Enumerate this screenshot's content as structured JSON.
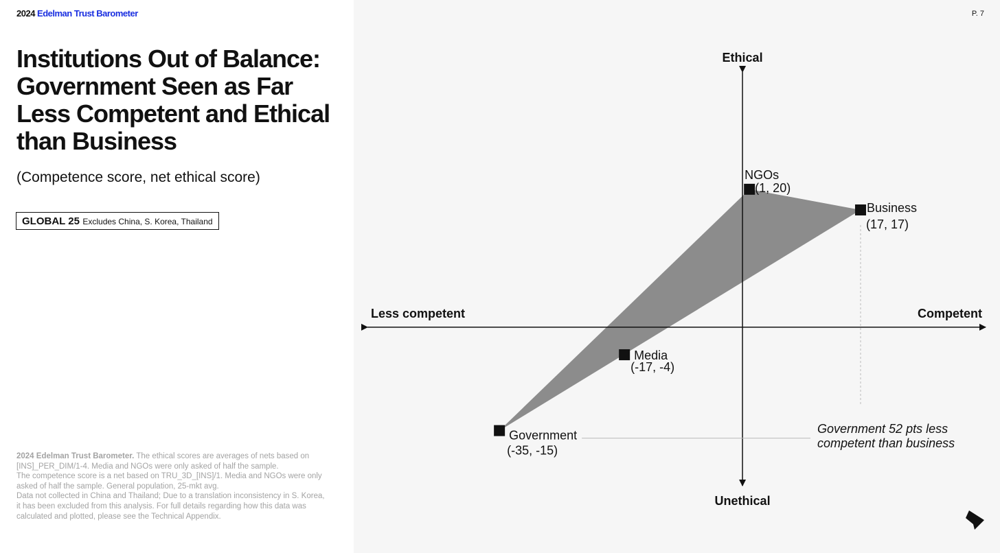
{
  "header": {
    "brand_year": "2024",
    "brand_name": "Edelman Trust Barometer",
    "page_number": "P. 7"
  },
  "title": "Institutions Out of Balance: Government Seen as Far Less Competent and Ethical than Business",
  "subtitle": "(Competence score, net ethical score)",
  "tag": {
    "bold": "GLOBAL 25",
    "small": "Excludes China, S. Korea, Thailand"
  },
  "notes": {
    "source_bold": "2024 Edelman Trust Barometer.",
    "line1": "The ethical scores are averages of nets based on [INS]_PER_DIM/1-4. Media and NGOs were only asked of half the sample.",
    "line2": "The competence score is a net based on TRU_3D_[INS]/1. Media and NGOs were only asked of half the sample. General population, 25-mkt avg.",
    "line3": "Data not collected in China and Thailand; Due to a translation inconsistency in S. Korea, it has been excluded from this analysis. For full details regarding how this data was calculated and plotted, please see the Technical Appendix."
  },
  "chart_data": {
    "type": "scatter",
    "axis_labels": {
      "top": "Ethical",
      "bottom": "Unethical",
      "left": "Less competent",
      "right": "Competent"
    },
    "xlabel": "Competence score",
    "ylabel": "Net ethical score",
    "xlim": [
      -54,
      35
    ],
    "ylim": [
      -23,
      37
    ],
    "grid": false,
    "legend": "none",
    "points": [
      {
        "name": "NGOs",
        "label": "(1, 20)",
        "x": 1,
        "y": 20
      },
      {
        "name": "Business",
        "label": "(17, 17)",
        "x": 17,
        "y": 17
      },
      {
        "name": "Media",
        "label": "(-17, -4)",
        "x": -17,
        "y": -4
      },
      {
        "name": "Government",
        "label": "(-35, -15)",
        "x": -35,
        "y": -15
      }
    ],
    "shaded_polygon": [
      "NGOs",
      "Business",
      "Government"
    ],
    "annotation": "Government 52 pts less competent than business",
    "colors": {
      "polygon": "#8c8c8c",
      "marker": "#111111",
      "axis": "#111111",
      "guide": "#bbbbbb"
    }
  }
}
